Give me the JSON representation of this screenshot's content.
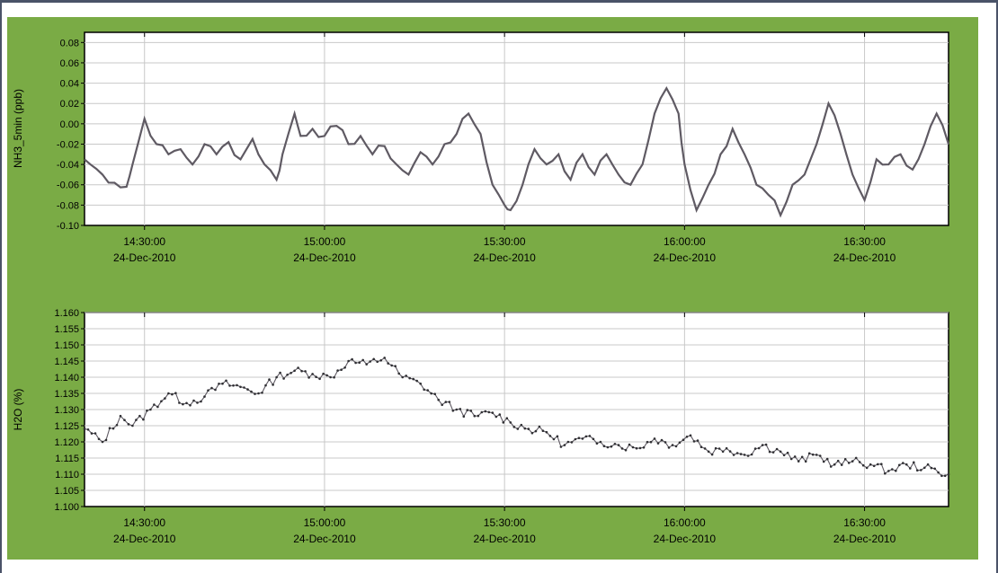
{
  "colors": {
    "panel_background": "#7aab45",
    "plot_background": "#ffffff",
    "grid": "#c8c8c8",
    "series": "#5f5a63",
    "frame_border": "#4a5368"
  },
  "chart_data": [
    {
      "type": "line",
      "ylabel": "NH3_5min (ppb)",
      "xlabel": "",
      "ylim": [
        -0.1,
        0.09
      ],
      "yticks": [
        "-0.10",
        "-0.08",
        "-0.06",
        "-0.04",
        "-0.02",
        "0.00",
        "0.02",
        "0.04",
        "0.06",
        "0.08"
      ],
      "xlim": [
        "14:20:00",
        "16:44:00"
      ],
      "xticks": [
        {
          "time": "14:30:00",
          "date": "24-Dec-2010"
        },
        {
          "time": "15:00:00",
          "date": "24-Dec-2010"
        },
        {
          "time": "15:30:00",
          "date": "24-Dec-2010"
        },
        {
          "time": "16:00:00",
          "date": "24-Dec-2010"
        },
        {
          "time": "16:30:00",
          "date": "24-Dec-2010"
        }
      ],
      "grid": true,
      "series": [
        {
          "color": "#5f5a63",
          "x": [
            "14:20",
            "14:23",
            "14:25",
            "14:27",
            "14:28",
            "14:30",
            "14:32",
            "14:34",
            "14:36",
            "14:38",
            "14:40",
            "14:42",
            "14:44",
            "14:46",
            "14:48",
            "14:50",
            "14:52",
            "14:53",
            "14:55",
            "14:56",
            "14:58",
            "15:00",
            "15:02",
            "15:04",
            "15:06",
            "15:08",
            "15:10",
            "15:12",
            "15:14",
            "15:16",
            "15:18",
            "15:20",
            "15:22",
            "15:24",
            "15:26",
            "15:28",
            "15:30",
            "15:31",
            "15:33",
            "15:35",
            "15:37",
            "15:39",
            "15:41",
            "15:43",
            "15:45",
            "15:47",
            "15:49",
            "15:51",
            "15:53",
            "15:55",
            "15:57",
            "15:59",
            "16:00",
            "16:02",
            "16:04",
            "16:06",
            "16:08",
            "16:10",
            "16:12",
            "16:14",
            "16:16",
            "16:18",
            "16:20",
            "16:22",
            "16:24",
            "16:26",
            "16:28",
            "16:30",
            "16:32",
            "16:34",
            "16:36",
            "16:38",
            "16:40",
            "16:42",
            "16:44"
          ],
          "y": [
            -0.035,
            -0.05,
            -0.058,
            -0.062,
            -0.04,
            0.005,
            -0.02,
            -0.03,
            -0.025,
            -0.04,
            -0.02,
            -0.03,
            -0.018,
            -0.035,
            -0.015,
            -0.04,
            -0.055,
            -0.03,
            0.01,
            -0.012,
            -0.005,
            -0.012,
            -0.002,
            -0.02,
            -0.012,
            -0.03,
            -0.022,
            -0.04,
            -0.05,
            -0.028,
            -0.04,
            -0.02,
            -0.01,
            0.01,
            -0.01,
            -0.06,
            -0.08,
            -0.085,
            -0.06,
            -0.025,
            -0.04,
            -0.03,
            -0.055,
            -0.03,
            -0.05,
            -0.03,
            -0.05,
            -0.06,
            -0.04,
            0.01,
            0.035,
            0.01,
            -0.04,
            -0.085,
            -0.06,
            -0.03,
            -0.005,
            -0.03,
            -0.06,
            -0.07,
            -0.09,
            -0.06,
            -0.05,
            -0.02,
            0.02,
            -0.01,
            -0.05,
            -0.075,
            -0.035,
            -0.04,
            -0.03,
            -0.045,
            -0.02,
            0.01,
            -0.02
          ]
        }
      ]
    },
    {
      "type": "line",
      "ylabel": "H2O (%)",
      "xlabel": "",
      "ylim": [
        1.1,
        1.16
      ],
      "yticks": [
        "1.100",
        "1.105",
        "1.110",
        "1.115",
        "1.120",
        "1.125",
        "1.130",
        "1.135",
        "1.140",
        "1.145",
        "1.150",
        "1.155",
        "1.160"
      ],
      "xlim": [
        "14:20:00",
        "16:44:00"
      ],
      "xticks": [
        {
          "time": "14:30:00",
          "date": "24-Dec-2010"
        },
        {
          "time": "15:00:00",
          "date": "24-Dec-2010"
        },
        {
          "time": "15:30:00",
          "date": "24-Dec-2010"
        },
        {
          "time": "16:00:00",
          "date": "24-Dec-2010"
        },
        {
          "time": "16:30:00",
          "date": "24-Dec-2010"
        }
      ],
      "grid": true,
      "series": [
        {
          "color": "#5f5a63",
          "x": [
            "14:20",
            "14:23",
            "14:26",
            "14:28",
            "14:31",
            "14:34",
            "14:37",
            "14:40",
            "14:43",
            "14:46",
            "14:49",
            "14:52",
            "14:55",
            "14:58",
            "15:01",
            "15:04",
            "15:07",
            "15:10",
            "15:13",
            "15:16",
            "15:19",
            "15:22",
            "15:25",
            "15:28",
            "15:31",
            "15:34",
            "15:37",
            "15:40",
            "15:43",
            "15:46",
            "15:49",
            "15:52",
            "15:55",
            "15:58",
            "16:01",
            "16:04",
            "16:07",
            "16:10",
            "16:13",
            "16:16",
            "16:19",
            "16:22",
            "16:25",
            "16:28",
            "16:31",
            "16:34",
            "16:37",
            "16:40",
            "16:44"
          ],
          "y": [
            1.124,
            1.12,
            1.128,
            1.125,
            1.13,
            1.135,
            1.132,
            1.134,
            1.138,
            1.137,
            1.135,
            1.14,
            1.142,
            1.141,
            1.14,
            1.145,
            1.144,
            1.146,
            1.14,
            1.138,
            1.133,
            1.13,
            1.128,
            1.129,
            1.126,
            1.124,
            1.123,
            1.119,
            1.121,
            1.12,
            1.119,
            1.118,
            1.121,
            1.119,
            1.122,
            1.117,
            1.118,
            1.116,
            1.119,
            1.117,
            1.114,
            1.116,
            1.113,
            1.114,
            1.113,
            1.111,
            1.113,
            1.112,
            1.11
          ]
        }
      ]
    }
  ]
}
